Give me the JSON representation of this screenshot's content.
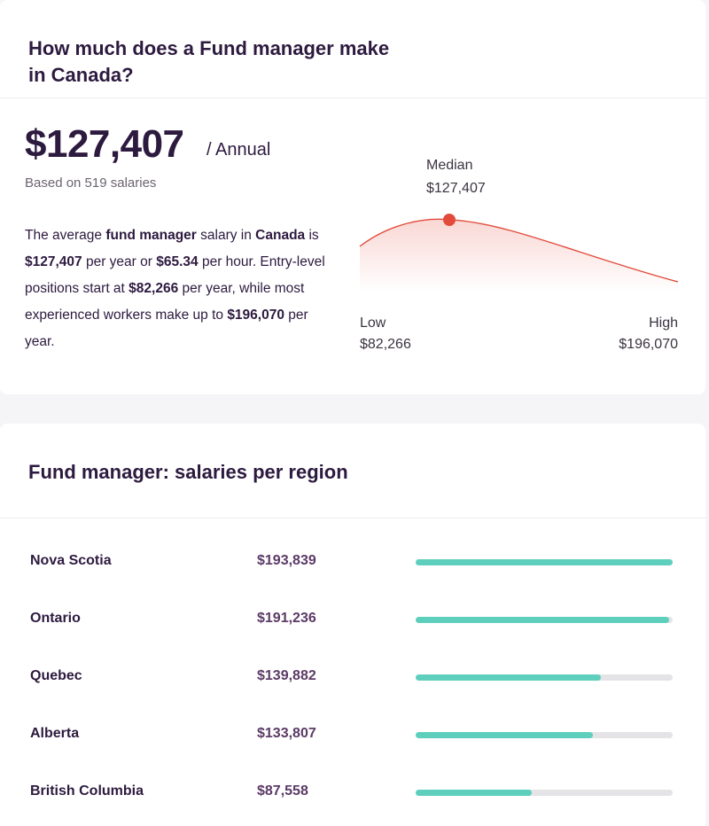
{
  "summary": {
    "title": "How much does a Fund manager make in Canada?",
    "salary": "$127,407",
    "period": "/ Annual",
    "based_on": "Based on 519 salaries",
    "description": {
      "t1": "The average ",
      "b1": "fund manager",
      "t2": " salary in ",
      "b2": "Canada",
      "t3": " is ",
      "b3": "$127,407",
      "t4": " per year or ",
      "b4": "$65.34",
      "t5": " per hour. Entry-level positions start at ",
      "b5": "$82,266",
      "t6": " per year, while most experienced workers make up to ",
      "b6": "$196,070",
      "t7": " per year."
    },
    "chart": {
      "median_label": "Median",
      "median_value": "$127,407",
      "low_label": "Low",
      "low_value": "$82,266",
      "high_label": "High",
      "high_value": "$196,070",
      "curve_color": "#e24b3b",
      "marker_color": "#e24b3b"
    }
  },
  "regions": {
    "title": "Fund manager: salaries per region",
    "accent": "#5fcfbd",
    "items": [
      {
        "name": "Nova Scotia",
        "salary": "$193,839",
        "fill": 1.0
      },
      {
        "name": "Ontario",
        "salary": "$191,236",
        "fill": 0.987
      },
      {
        "name": "Quebec",
        "salary": "$139,882",
        "fill": 0.721
      },
      {
        "name": "Alberta",
        "salary": "$133,807",
        "fill": 0.69
      },
      {
        "name": "British Columbia",
        "salary": "$87,558",
        "fill": 0.452
      }
    ]
  }
}
